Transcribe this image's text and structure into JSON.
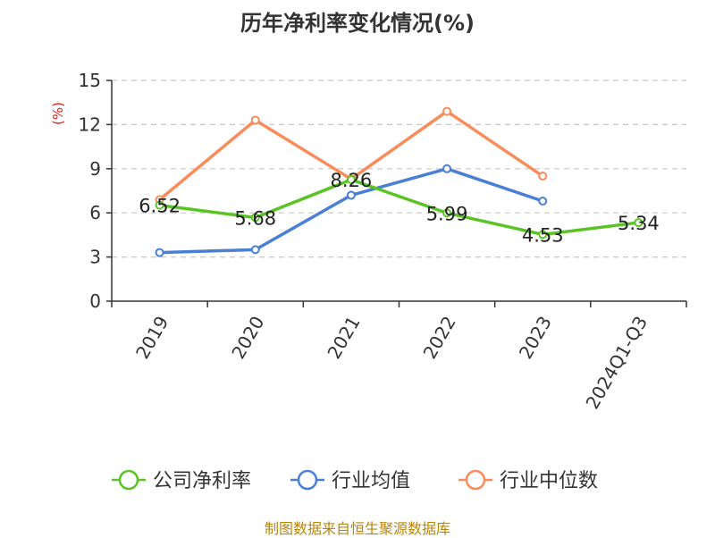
{
  "title": "历年净利率变化情况(%)",
  "source": "制图数据来自恒生聚源数据库",
  "chart_data": {
    "type": "line",
    "title": "历年净利率变化情况(%)",
    "ylabel": "(%)",
    "xlabel": "",
    "categories": [
      "2019",
      "2020",
      "2021",
      "2022",
      "2023",
      "2024Q1-Q3"
    ],
    "ylim": [
      0,
      15
    ],
    "yticks": [
      0,
      3,
      6,
      9,
      12,
      15
    ],
    "grid": true,
    "legend_position": "bottom",
    "series": [
      {
        "name": "公司净利率",
        "color": "#5bc425",
        "values": [
          6.52,
          5.68,
          8.26,
          5.99,
          4.53,
          5.34
        ],
        "labels": [
          "6.52",
          "5.68",
          "8.26",
          "5.99",
          "4.53",
          "5.34"
        ]
      },
      {
        "name": "行业均值",
        "color": "#4a7fd6",
        "values": [
          3.3,
          3.5,
          7.2,
          9.0,
          6.8,
          null
        ],
        "labels": null
      },
      {
        "name": "行业中位数",
        "color": "#f88c5a",
        "values": [
          6.9,
          12.3,
          8.3,
          12.9,
          8.5,
          null
        ],
        "labels": null
      }
    ]
  }
}
